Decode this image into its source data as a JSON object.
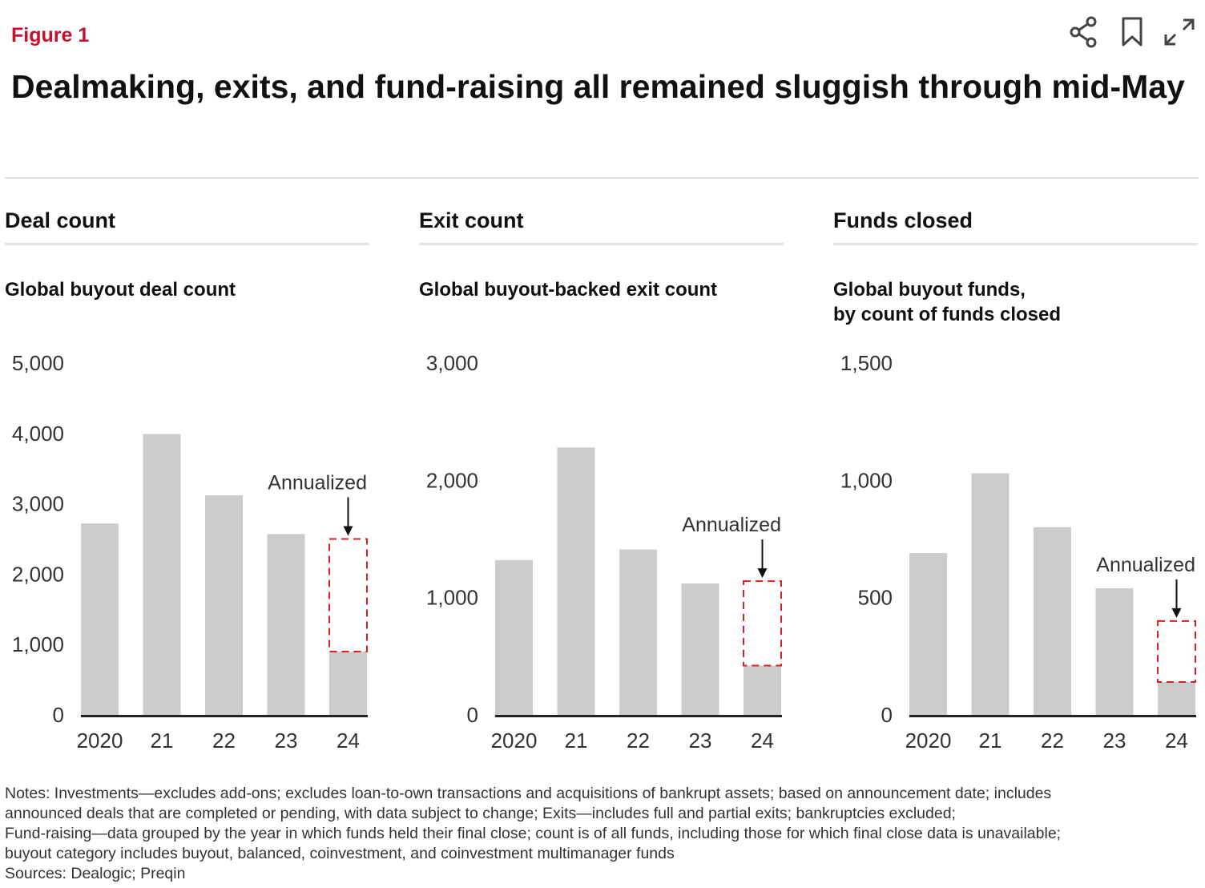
{
  "figure_label": "Figure 1",
  "title": "Dealmaking, exits, and fund-raising all remained sluggish through mid-May",
  "toolbar": {
    "icons": [
      "share-icon",
      "bookmark-icon",
      "expand-icon"
    ]
  },
  "annotation": "Annualized",
  "colors": {
    "bar": "#cccccc",
    "annualized": "#d91f26",
    "brand": "#c8102e",
    "baseline": "#222222"
  },
  "chart_data": [
    {
      "type": "bar",
      "panel_title": "Deal count",
      "title": "Global buyout deal count",
      "categories": [
        "2020",
        "21",
        "22",
        "23",
        "24"
      ],
      "values": [
        2720,
        3990,
        3120,
        2570,
        900
      ],
      "annualized": {
        "category": "24",
        "value": 2500
      },
      "ylim": [
        0,
        5000
      ],
      "yticks": [
        0,
        1000,
        2000,
        3000,
        4000,
        5000
      ],
      "ytick_labels": [
        "0",
        "1,000",
        "2,000",
        "3,000",
        "4,000",
        "5,000"
      ],
      "grid": false
    },
    {
      "type": "bar",
      "panel_title": "Exit count",
      "title": "Global buyout-backed exit count",
      "categories": [
        "2020",
        "21",
        "22",
        "23",
        "24"
      ],
      "values": [
        1320,
        2280,
        1410,
        1120,
        420
      ],
      "annualized": {
        "category": "24",
        "value": 1140
      },
      "ylim": [
        0,
        3000
      ],
      "yticks": [
        0,
        1000,
        2000,
        3000
      ],
      "ytick_labels": [
        "0",
        "1,000",
        "2,000",
        "3,000"
      ],
      "grid": false
    },
    {
      "type": "bar",
      "panel_title": "Funds closed",
      "title": "Global buyout funds, by count of funds closed",
      "title_lines": [
        "Global buyout funds,",
        "by count of funds closed"
      ],
      "categories": [
        "2020",
        "21",
        "22",
        "23",
        "24"
      ],
      "values": [
        690,
        1030,
        800,
        540,
        140
      ],
      "annualized": {
        "category": "24",
        "value": 400
      },
      "ylim": [
        0,
        1500
      ],
      "yticks": [
        0,
        500,
        1000,
        1500
      ],
      "ytick_labels": [
        "0",
        "500",
        "1,000",
        "1,500"
      ],
      "grid": false
    }
  ],
  "notes": [
    "Notes: Investments—excludes add-ons; excludes loan-to-own transactions and acquisitions of bankrupt assets; based on announcement date; includes",
    "announced deals that are completed or pending, with data subject to change; Exits—includes full and partial exits; bankruptcies excluded;",
    "Fund-raising—data grouped by the year in which funds held their final close; count is of all funds, including those for which final close data is unavailable;",
    "buyout category includes buyout, balanced, coinvestment, and coinvestment multimanager funds",
    "Sources: Dealogic; Preqin"
  ]
}
